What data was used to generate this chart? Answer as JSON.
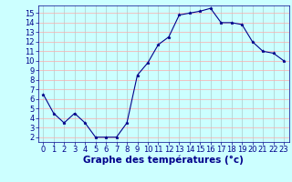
{
  "x": [
    0,
    1,
    2,
    3,
    4,
    5,
    6,
    7,
    8,
    9,
    10,
    11,
    12,
    13,
    14,
    15,
    16,
    17,
    18,
    19,
    20,
    21,
    22,
    23
  ],
  "y": [
    6.5,
    4.5,
    3.5,
    4.5,
    3.5,
    2.0,
    2.0,
    2.0,
    3.5,
    8.5,
    9.8,
    11.7,
    12.5,
    14.8,
    15.0,
    15.2,
    15.5,
    14.0,
    14.0,
    13.8,
    12.0,
    11.0,
    10.8,
    10.0
  ],
  "line_color": "#00008B",
  "marker": "*",
  "bg_color": "#ccffff",
  "grid_color_major": "#ffaaaa",
  "grid_color_minor": "#aacccc",
  "xlabel": "Graphe des températures (°c)",
  "xlim": [
    -0.5,
    23.5
  ],
  "ylim": [
    1.5,
    15.8
  ],
  "yticks": [
    2,
    3,
    4,
    5,
    6,
    7,
    8,
    9,
    10,
    11,
    12,
    13,
    14,
    15
  ],
  "xticks": [
    0,
    1,
    2,
    3,
    4,
    5,
    6,
    7,
    8,
    9,
    10,
    11,
    12,
    13,
    14,
    15,
    16,
    17,
    18,
    19,
    20,
    21,
    22,
    23
  ],
  "tick_fontsize": 6.0,
  "xlabel_fontsize": 7.5,
  "xlabel_fontweight": "bold",
  "figsize": [
    3.2,
    2.0
  ],
  "dpi": 100
}
